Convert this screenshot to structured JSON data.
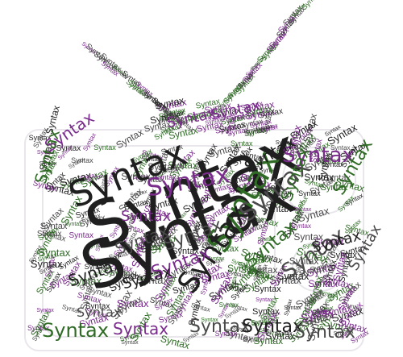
{
  "word": "Syntax",
  "colors": {
    "black": "#1f1f1f",
    "dark_gray": "#4a4a4a",
    "purple": "#7a2c8c",
    "green": "#2f6b25",
    "background": "#ffffff"
  }
}
